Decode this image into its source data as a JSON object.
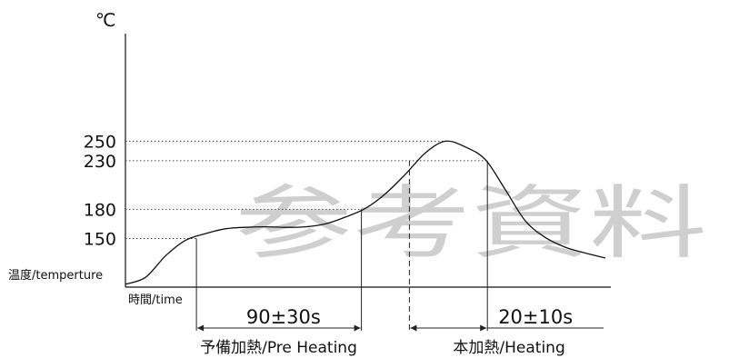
{
  "chart_data": {
    "type": "line",
    "title": "",
    "unit_label": "℃",
    "ylabel": "温度/temperture",
    "xlabel": "時間/time",
    "y_ticks": [
      250,
      230,
      180,
      150
    ],
    "ylim": [
      100,
      262
    ],
    "series": [
      {
        "points": [
          [
            0,
            103
          ],
          [
            20,
            110
          ],
          [
            40,
            132
          ],
          [
            60,
            148
          ],
          [
            80,
            155
          ],
          [
            100,
            160
          ],
          [
            120,
            161.5
          ],
          [
            140,
            162
          ],
          [
            160,
            161.5
          ],
          [
            180,
            162
          ],
          [
            200,
            165
          ],
          [
            220,
            172
          ],
          [
            240,
            181
          ],
          [
            260,
            196
          ],
          [
            280,
            216
          ],
          [
            300,
            238
          ],
          [
            320,
            250
          ],
          [
            340,
            244
          ],
          [
            360,
            231
          ],
          [
            380,
            200
          ],
          [
            400,
            168
          ],
          [
            420,
            151
          ],
          [
            440,
            141
          ],
          [
            460,
            135
          ],
          [
            480,
            130
          ]
        ]
      }
    ],
    "markers": {
      "preheat_start": 71,
      "preheat_end": 236,
      "main_start": 284,
      "main_end": 362
    },
    "windows": [
      {
        "time": "90±30s",
        "phase": "予備加熱/Pre Heating"
      },
      {
        "time": "20±10s",
        "phase": "本加熱/Heating"
      }
    ]
  },
  "watermark": {
    "text": "参考資料"
  }
}
